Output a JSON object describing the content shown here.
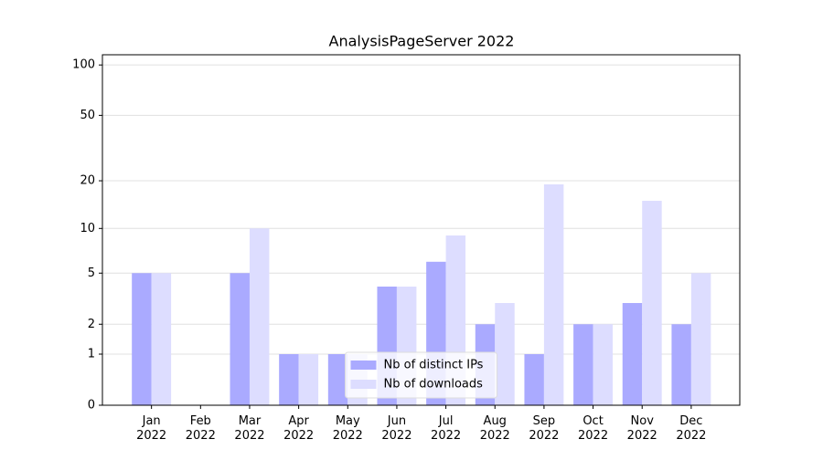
{
  "chart_data": {
    "type": "bar",
    "title": "AnalysisPageServer 2022",
    "categories": [
      "Jan\n2022",
      "Feb\n2022",
      "Mar\n2022",
      "Apr\n2022",
      "May\n2022",
      "Jun\n2022",
      "Jul\n2022",
      "Aug\n2022",
      "Sep\n2022",
      "Oct\n2022",
      "Nov\n2022",
      "Dec\n2022"
    ],
    "series": [
      {
        "name": "Nb of distinct IPs",
        "color": "#aaaaff",
        "values": [
          5,
          0,
          5,
          1,
          1,
          4,
          6,
          2,
          1,
          2,
          3,
          2
        ]
      },
      {
        "name": "Nb of downloads",
        "color": "#ddddff",
        "values": [
          5,
          0,
          10,
          1,
          1,
          4,
          9,
          3,
          19,
          2,
          15,
          5
        ]
      }
    ],
    "yscale": "log1p",
    "ylim": [
      0,
      115
    ],
    "yticks": [
      0,
      1,
      2,
      5,
      10,
      20,
      50,
      100
    ],
    "grid": true,
    "legend": "lower center"
  }
}
